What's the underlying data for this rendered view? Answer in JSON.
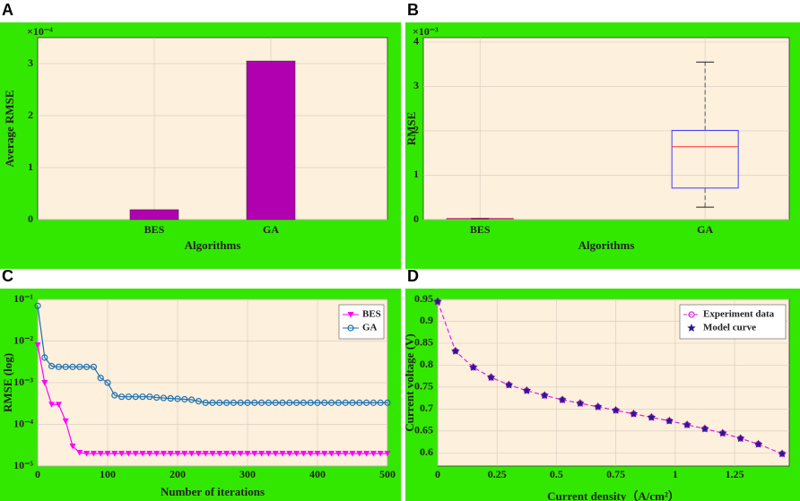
{
  "chart_data": [
    {
      "type": "bar",
      "panel_label": "A",
      "y_multiplier": "×10⁻⁴",
      "xlabel": "Algorithms",
      "ylabel": "Average RMSE",
      "categories": [
        "BES",
        "GA"
      ],
      "values": [
        0.19,
        3.05
      ],
      "color": "#b000b0",
      "ylim": [
        0,
        3.5
      ],
      "yticks": [
        0,
        1,
        2,
        3
      ],
      "grid": true
    },
    {
      "type": "box",
      "panel_label": "B",
      "y_multiplier": "×10⁻³",
      "xlabel": "Algorithms",
      "ylabel": "RMSE",
      "categories": [
        "BES",
        "GA"
      ],
      "boxes": [
        {
          "whislo": 0.01,
          "q1": 0.015,
          "med": 0.02,
          "q3": 0.025,
          "whishi": 0.03
        },
        {
          "whislo": 0.28,
          "q1": 0.71,
          "med": 1.64,
          "q3": 2.01,
          "whishi": 3.55
        }
      ],
      "box_color": "#4040ff",
      "median_color": "#ff3030",
      "ylim": [
        0,
        4.1
      ],
      "yticks": [
        0,
        1,
        2,
        3,
        4
      ],
      "grid": true
    },
    {
      "type": "line",
      "panel_label": "C",
      "xlabel": "Number of iterations",
      "ylabel": "RMSE (log)",
      "log_y": true,
      "legend": "upper right",
      "x": [
        0,
        10,
        20,
        30,
        40,
        50,
        60,
        70,
        80,
        90,
        100,
        110,
        120,
        130,
        140,
        150,
        160,
        170,
        180,
        190,
        200,
        210,
        220,
        230,
        240,
        250,
        260,
        270,
        280,
        290,
        300,
        310,
        320,
        330,
        340,
        350,
        360,
        370,
        380,
        390,
        400,
        410,
        420,
        430,
        440,
        450,
        460,
        470,
        480,
        490,
        500
      ],
      "series": [
        {
          "name": "BES",
          "color": "#ff00ff",
          "marker": "triangle-down",
          "linestyle": "solid",
          "values": [
            0.008,
            0.001,
            0.0003,
            0.0003,
            0.00012,
            3e-05,
            2.1e-05,
            2e-05,
            2e-05,
            2e-05,
            2e-05,
            2e-05,
            2e-05,
            2e-05,
            2e-05,
            2e-05,
            2e-05,
            2e-05,
            2e-05,
            2e-05,
            2e-05,
            2e-05,
            2e-05,
            2e-05,
            2e-05,
            2e-05,
            2e-05,
            2e-05,
            2e-05,
            2e-05,
            2e-05,
            2e-05,
            2e-05,
            2e-05,
            2e-05,
            2e-05,
            2e-05,
            2e-05,
            2e-05,
            2e-05,
            2e-05,
            2e-05,
            2e-05,
            2e-05,
            2e-05,
            2e-05,
            2e-05,
            2e-05,
            2e-05,
            2e-05,
            2e-05
          ]
        },
        {
          "name": "GA",
          "color": "#1a6fb0",
          "marker": "circle",
          "linestyle": "solid",
          "values": [
            0.07,
            0.004,
            0.0025,
            0.0024,
            0.0024,
            0.0024,
            0.0024,
            0.0024,
            0.0024,
            0.0013,
            0.001,
            0.0005,
            0.00046,
            0.00046,
            0.00046,
            0.00046,
            0.00046,
            0.00044,
            0.00043,
            0.00042,
            0.00041,
            0.0004,
            0.00039,
            0.00036,
            0.00033,
            0.00033,
            0.00033,
            0.00033,
            0.00033,
            0.00033,
            0.00033,
            0.00033,
            0.00033,
            0.00033,
            0.00033,
            0.00033,
            0.00033,
            0.00033,
            0.00033,
            0.00033,
            0.00033,
            0.00033,
            0.00033,
            0.00033,
            0.00033,
            0.00033,
            0.00033,
            0.00033,
            0.00033,
            0.00033,
            0.00033
          ]
        }
      ],
      "xlim": [
        0,
        500
      ],
      "xticks": [
        0,
        100,
        200,
        300,
        400,
        500
      ],
      "ylim": [
        1e-05,
        0.1
      ],
      "yticks": [
        {
          "value": 0.1,
          "label": "10⁻¹"
        },
        {
          "value": 0.01,
          "label": "10⁻²"
        },
        {
          "value": 0.001,
          "label": "10⁻³"
        },
        {
          "value": 0.0001,
          "label": "10⁻⁴"
        },
        {
          "value": 1e-05,
          "label": "10⁻⁵"
        }
      ],
      "grid": true
    },
    {
      "type": "line",
      "panel_label": "D",
      "xlabel": "Current density（A/cm²）",
      "ylabel": "Current voltage (V)",
      "legend": "upper right",
      "x": [
        0,
        0.075,
        0.15,
        0.225,
        0.3,
        0.375,
        0.45,
        0.525,
        0.6,
        0.675,
        0.75,
        0.825,
        0.9,
        0.975,
        1.05,
        1.125,
        1.2,
        1.275,
        1.35,
        1.45
      ],
      "series": [
        {
          "name": "Experiment data",
          "color": "#e020e0",
          "marker": "circle",
          "linestyle": "dashed",
          "values": [
            0.945,
            0.832,
            0.795,
            0.772,
            0.755,
            0.742,
            0.731,
            0.721,
            0.713,
            0.705,
            0.697,
            0.689,
            0.681,
            0.673,
            0.664,
            0.655,
            0.645,
            0.633,
            0.62,
            0.598
          ]
        },
        {
          "name": "Model curve",
          "color": "#2a1a8a",
          "marker": "star",
          "linestyle": "none",
          "values": [
            0.945,
            0.832,
            0.795,
            0.772,
            0.755,
            0.742,
            0.731,
            0.721,
            0.713,
            0.705,
            0.697,
            0.689,
            0.681,
            0.673,
            0.664,
            0.655,
            0.645,
            0.633,
            0.62,
            0.598
          ]
        }
      ],
      "xlim": [
        0,
        1.48
      ],
      "xticks": [
        0,
        0.25,
        0.5,
        0.75,
        1,
        1.25
      ],
      "ylim": [
        0.57,
        0.95
      ],
      "yticks": [
        0.6,
        0.65,
        0.7,
        0.75,
        0.8,
        0.85,
        0.9,
        0.95
      ],
      "grid": true
    }
  ]
}
